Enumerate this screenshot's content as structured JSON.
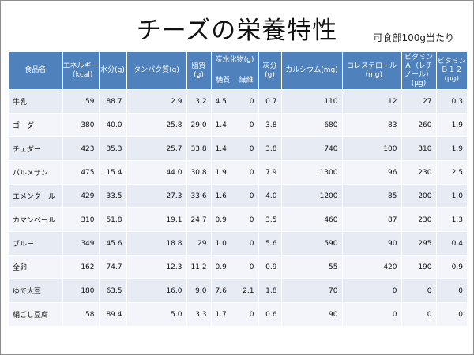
{
  "slide": {
    "title": "チーズの栄養特性",
    "note": "可食部100g当たり"
  },
  "table": {
    "headers": {
      "food": "食品名",
      "energy": "エネルギー（kcal)",
      "water": "水分(g)",
      "protein": "タンパク質(g)",
      "fat": "脂質(g)",
      "carb": "炭水化物(g)",
      "sugar": "糖質",
      "fiber": "繊維",
      "ash": "灰分(g)",
      "calcium": "カルシウム(mg)",
      "cholesterol": "コレステロール（mg)",
      "vitaminA": "ビタミンＡ（レチノール）(μg)",
      "vitaminB12": "ビタミンＢ１２(μg)"
    },
    "rows": [
      {
        "food": "牛乳",
        "energy": "59",
        "water": "88.7",
        "protein": "2.9",
        "fat": "3.2",
        "sugar": "4.5",
        "fiber": "0",
        "ash": "0.7",
        "calcium": "110",
        "cholesterol": "12",
        "vitaminA": "27",
        "vitaminB12": "0.3"
      },
      {
        "food": "ゴーダ",
        "energy": "380",
        "water": "40.0",
        "protein": "25.8",
        "fat": "29.0",
        "sugar": "1.4",
        "fiber": "0",
        "ash": "3.8",
        "calcium": "680",
        "cholesterol": "83",
        "vitaminA": "260",
        "vitaminB12": "1.9"
      },
      {
        "food": "チェダー",
        "energy": "423",
        "water": "35.3",
        "protein": "25.7",
        "fat": "33.8",
        "sugar": "1.4",
        "fiber": "0",
        "ash": "3.8",
        "calcium": "740",
        "cholesterol": "100",
        "vitaminA": "310",
        "vitaminB12": "1.9"
      },
      {
        "food": "パルメザン",
        "energy": "475",
        "water": "15.4",
        "protein": "44.0",
        "fat": "30.8",
        "sugar": "1.9",
        "fiber": "0",
        "ash": "7.9",
        "calcium": "1300",
        "cholesterol": "96",
        "vitaminA": "230",
        "vitaminB12": "2.5"
      },
      {
        "food": "エメンタール",
        "energy": "429",
        "water": "33.5",
        "protein": "27.3",
        "fat": "33.6",
        "sugar": "1.6",
        "fiber": "0",
        "ash": "4.0",
        "calcium": "1200",
        "cholesterol": "85",
        "vitaminA": "200",
        "vitaminB12": "1.0"
      },
      {
        "food": "カマンベール",
        "energy": "310",
        "water": "51.8",
        "protein": "19.1",
        "fat": "24.7",
        "sugar": "0.9",
        "fiber": "0",
        "ash": "3.5",
        "calcium": "460",
        "cholesterol": "87",
        "vitaminA": "230",
        "vitaminB12": "1.3"
      },
      {
        "food": "ブルー",
        "energy": "349",
        "water": "45.6",
        "protein": "18.8",
        "fat": "29",
        "sugar": "1.0",
        "fiber": "0",
        "ash": "5.6",
        "calcium": "590",
        "cholesterol": "90",
        "vitaminA": "295",
        "vitaminB12": "0.4"
      },
      {
        "food": "全卵",
        "energy": "162",
        "water": "74.7",
        "protein": "12.3",
        "fat": "11.2",
        "sugar": "0.9",
        "fiber": "0",
        "ash": "0.9",
        "calcium": "55",
        "cholesterol": "420",
        "vitaminA": "190",
        "vitaminB12": "0.9"
      },
      {
        "food": "ゆで大豆",
        "energy": "180",
        "water": "63.5",
        "protein": "16.0",
        "fat": "9.0",
        "sugar": "7.6",
        "fiber": "2.1",
        "ash": "1.8",
        "calcium": "70",
        "cholesterol": "0",
        "vitaminA": "0",
        "vitaminB12": "0"
      },
      {
        "food": "絹ごし豆腐",
        "energy": "58",
        "water": "89.4",
        "protein": "5.0",
        "fat": "3.3",
        "sugar": "1.7",
        "fiber": "0",
        "ash": "0.6",
        "calcium": "90",
        "cholesterol": "0",
        "vitaminA": "0",
        "vitaminB12": "0"
      }
    ]
  },
  "colors": {
    "header_bg": "#4f81bd",
    "row_odd": "#e6ebf4",
    "row_even": "#f3f5fa"
  }
}
